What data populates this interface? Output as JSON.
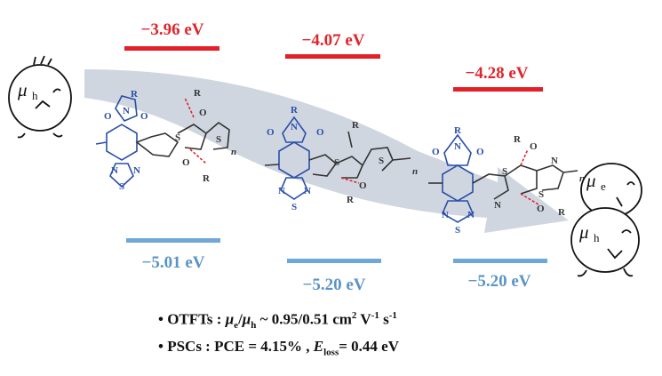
{
  "levels": {
    "lumo": [
      "−3.96 eV",
      "−4.07 eV",
      "−4.28 eV"
    ],
    "homo": [
      "−5.01 eV",
      "−5.20 eV",
      "−5.20 eV"
    ]
  },
  "mobility_labels": {
    "mu": "μ",
    "h": "h",
    "e": "e"
  },
  "structures": {
    "letters": {
      "R": "R",
      "N": "N",
      "O": "O",
      "S": "S",
      "n": "n"
    }
  },
  "bullets": {
    "b1_prefix": "• OTFTs : ",
    "b1_mu1": "μ",
    "b1_sub1": "e",
    "b1_slash": "/",
    "b1_mu2": "μ",
    "b1_sub2": "h",
    "b1_value": " ~ 0.95/0.51 cm",
    "b1_sq": "2",
    "b1_v": " V",
    "b1_vexp": "-1",
    "b1_s": " s",
    "b1_sexp": "-1",
    "b2_prefix": "• PSCs : PCE = 4.15% , ",
    "b2_e": "E",
    "b2_sub": "loss",
    "b2_value": "= 0.44 eV"
  },
  "colors": {
    "lumo": "#e32027",
    "homo": "#6fa7d6",
    "structure": "#2a4fa8",
    "arrow": "#c9d0dc",
    "hbond": "#e0242b"
  }
}
